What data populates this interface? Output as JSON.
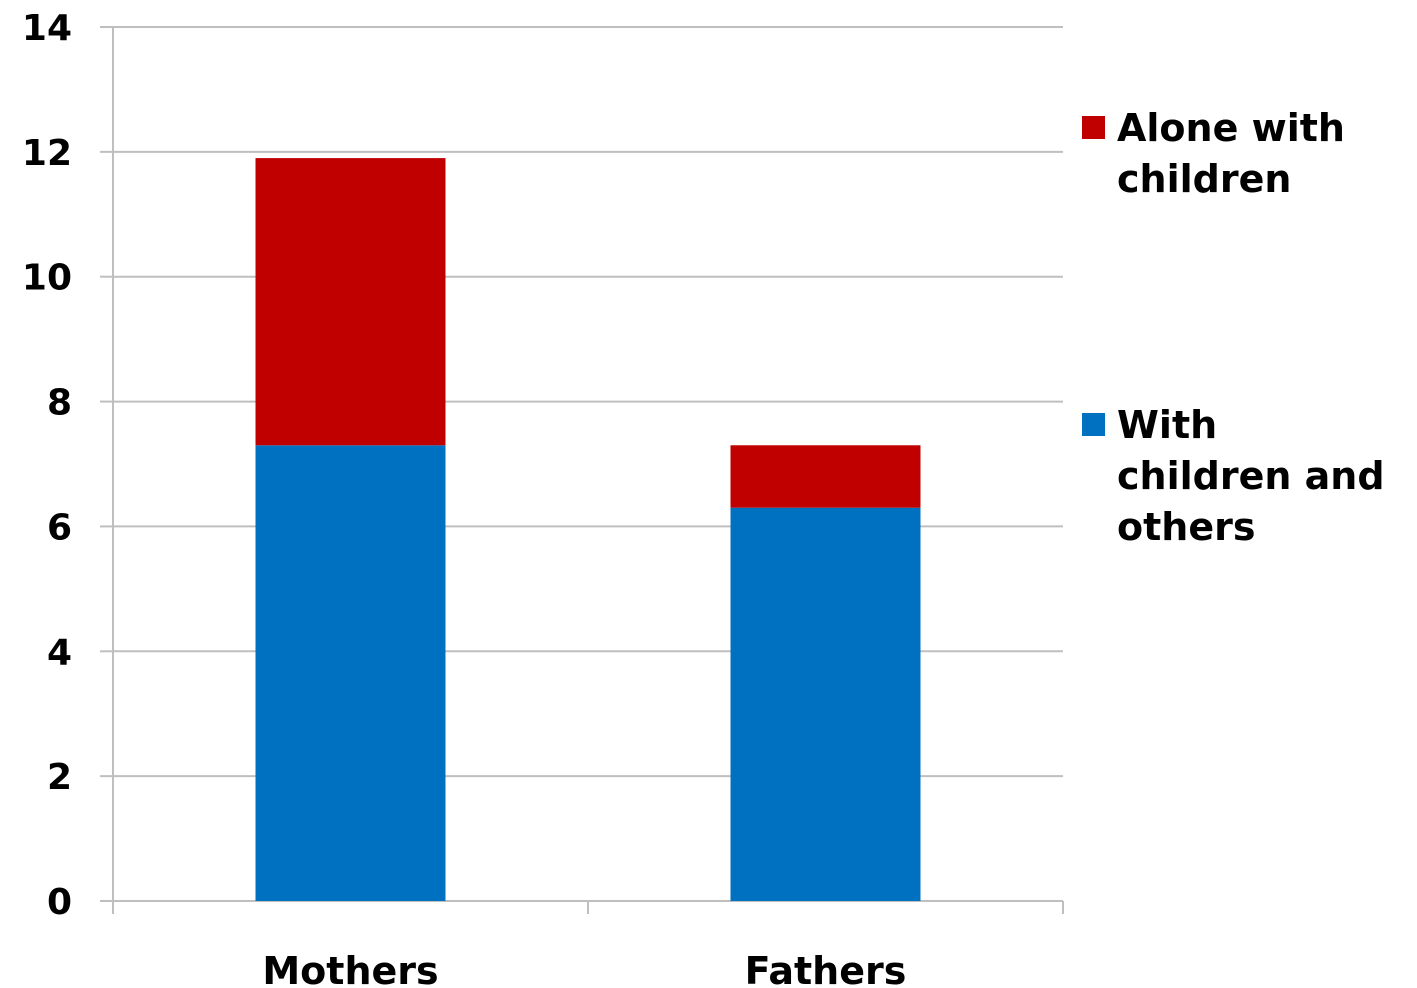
{
  "chart_data": {
    "type": "bar",
    "stacked": true,
    "categories": [
      "Mothers",
      "Fathers"
    ],
    "series": [
      {
        "name": "With children and others",
        "values": [
          7.3,
          6.3
        ],
        "color": "#0070C0"
      },
      {
        "name": "Alone with children",
        "values": [
          4.6,
          1.0
        ],
        "color": "#C00000"
      }
    ],
    "title": "",
    "xlabel": "",
    "ylabel": "",
    "ylim": [
      0,
      14
    ],
    "yticks": [
      "0",
      "2",
      "4",
      "6",
      "8",
      "10",
      "12",
      "14"
    ],
    "grid": true,
    "legend": {
      "position": "right",
      "entries": [
        {
          "series": 1,
          "lines": [
            "Alone with",
            "children"
          ]
        },
        {
          "series": 0,
          "lines": [
            "With",
            "children and",
            "others"
          ]
        }
      ]
    }
  }
}
